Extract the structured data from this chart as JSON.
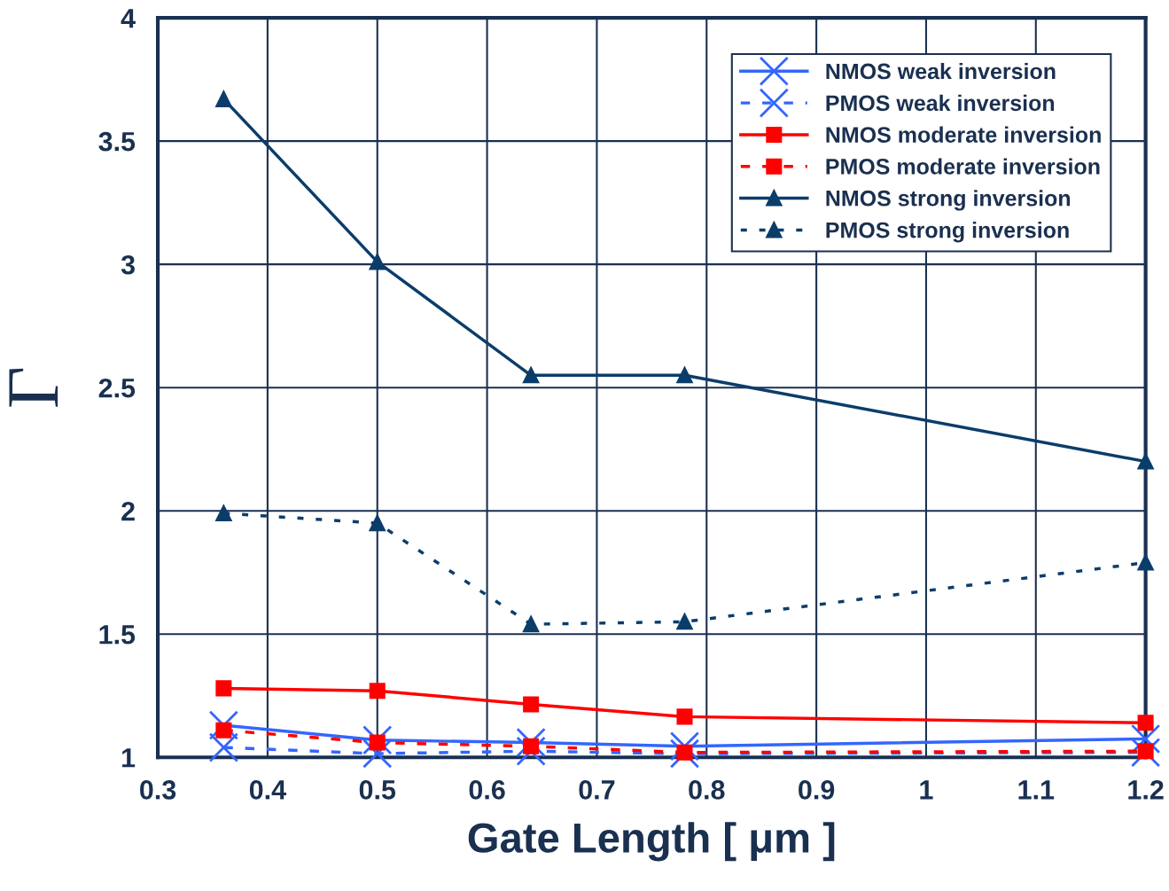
{
  "chart_data": {
    "type": "line",
    "xlabel": "Gate Length [ μm ]",
    "ylabel": "Γ",
    "x": [
      0.36,
      0.5,
      0.64,
      0.78,
      1.2
    ],
    "series": [
      {
        "name": "NMOS weak inversion",
        "color": "#3366ff",
        "marker": "cross",
        "line_style": "solid",
        "values": [
          1.13,
          1.07,
          1.06,
          1.045,
          1.075
        ]
      },
      {
        "name": "PMOS weak inversion",
        "color": "#3366ff",
        "marker": "cross",
        "line_style": "dashed",
        "values": [
          1.04,
          1.015,
          1.025,
          1.015,
          1.02
        ]
      },
      {
        "name": "NMOS moderate inversion",
        "color": "#ff0000",
        "marker": "square",
        "line_style": "solid",
        "values": [
          1.28,
          1.27,
          1.215,
          1.165,
          1.14
        ]
      },
      {
        "name": "PMOS moderate inversion",
        "color": "#ff0000",
        "marker": "square",
        "line_style": "dashed",
        "values": [
          1.11,
          1.06,
          1.045,
          1.02,
          1.025
        ]
      },
      {
        "name": "NMOS strong inversion",
        "color": "#0b3d6b",
        "marker": "triangle",
        "line_style": "solid",
        "values": [
          3.67,
          3.01,
          2.55,
          2.55,
          2.2
        ]
      },
      {
        "name": "PMOS strong inversion",
        "color": "#0b3d6b",
        "marker": "triangle",
        "line_style": "dotted",
        "values": [
          1.99,
          1.95,
          1.54,
          1.55,
          1.79
        ]
      }
    ],
    "xlim": [
      0.3,
      1.2
    ],
    "xticks": [
      0.3,
      0.4,
      0.5,
      0.6,
      0.7,
      0.8,
      0.9,
      1,
      1.1,
      1.2
    ],
    "ylim": [
      1,
      4
    ],
    "yticks": [
      1,
      1.5,
      2,
      2.5,
      3,
      3.5,
      4
    ],
    "grid": true,
    "legend": "top right"
  }
}
